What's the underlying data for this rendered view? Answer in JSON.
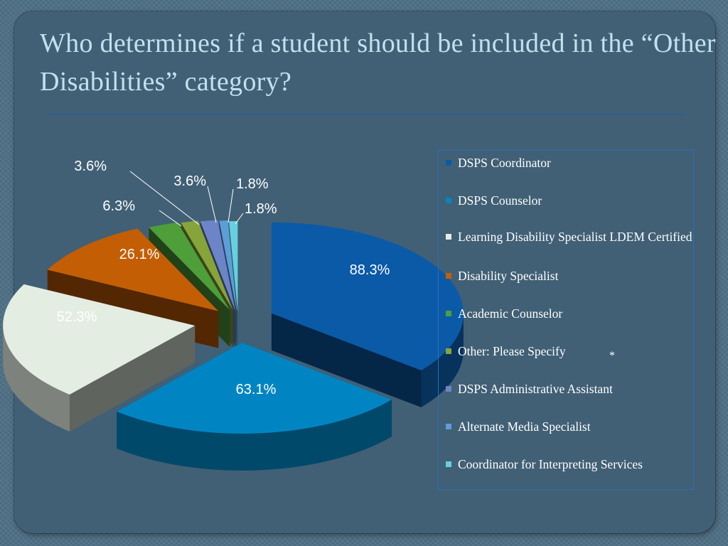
{
  "slide": {
    "title": "Who determines if a student should be included in the “Other Disabilities” category?",
    "note_mark": "*"
  },
  "chart_data": {
    "type": "pie",
    "style": "3d-exploded",
    "title": "",
    "categories": [
      "DSPS Coordinator",
      "DSPS Counselor",
      "Learning Disability Specialist LDEM Certified",
      "Disability Specialist",
      "Academic Counselor",
      "Other: Please Specify",
      "DSPS Administrative Assistant",
      "Alternate Media Specialist",
      "Coordinator for Interpreting Services"
    ],
    "values": [
      88.3,
      63.1,
      52.3,
      26.1,
      6.3,
      3.6,
      3.6,
      1.8,
      1.8
    ],
    "data_labels": [
      "88.3%",
      "63.1%",
      "52.3%",
      "26.1%",
      "6.3%",
      "3.6%",
      "3.6%",
      "1.8%",
      "1.8%"
    ],
    "colors": [
      "#0a5aa8",
      "#0085c2",
      "#e4ede2",
      "#c35e05",
      "#4e9e3a",
      "#87a43a",
      "#6c84c8",
      "#5d9ed8",
      "#66d0df"
    ],
    "label_colors": [
      "#ffffff",
      "#ffffff",
      "#ffffff",
      "#ffffff",
      "#ffffff",
      "#ffffff",
      "#ffffff",
      "#ffffff",
      "#ffffff"
    ],
    "legend": "right"
  }
}
